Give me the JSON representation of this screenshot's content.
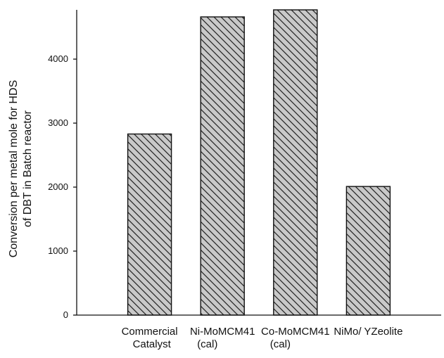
{
  "chart_data": {
    "type": "bar",
    "title": "",
    "xlabel": "",
    "ylabel_lines": [
      "Conversion per metal mole for HDS",
      "of DBT in Batch reactor"
    ],
    "categories": [
      [
        "Commercial",
        "Catalyst"
      ],
      [
        "Ni-MoMCM41",
        "(cal)"
      ],
      [
        "Co-MoMCM41",
        "(cal)"
      ],
      [
        "NiMo/ YZeolite"
      ]
    ],
    "values": [
      2830,
      4660,
      4770,
      2010
    ],
    "ylim": [
      0,
      4770
    ],
    "yticks": [
      0,
      1000,
      2000,
      3000,
      4000
    ],
    "ytick_labels": [
      "0",
      "1000",
      "2000",
      "3000",
      "4000"
    ],
    "grid": false,
    "legend": "none",
    "colors": {
      "bar_fill": "#c9c9c9",
      "hatch": "#222222",
      "axis": "#111111"
    }
  }
}
